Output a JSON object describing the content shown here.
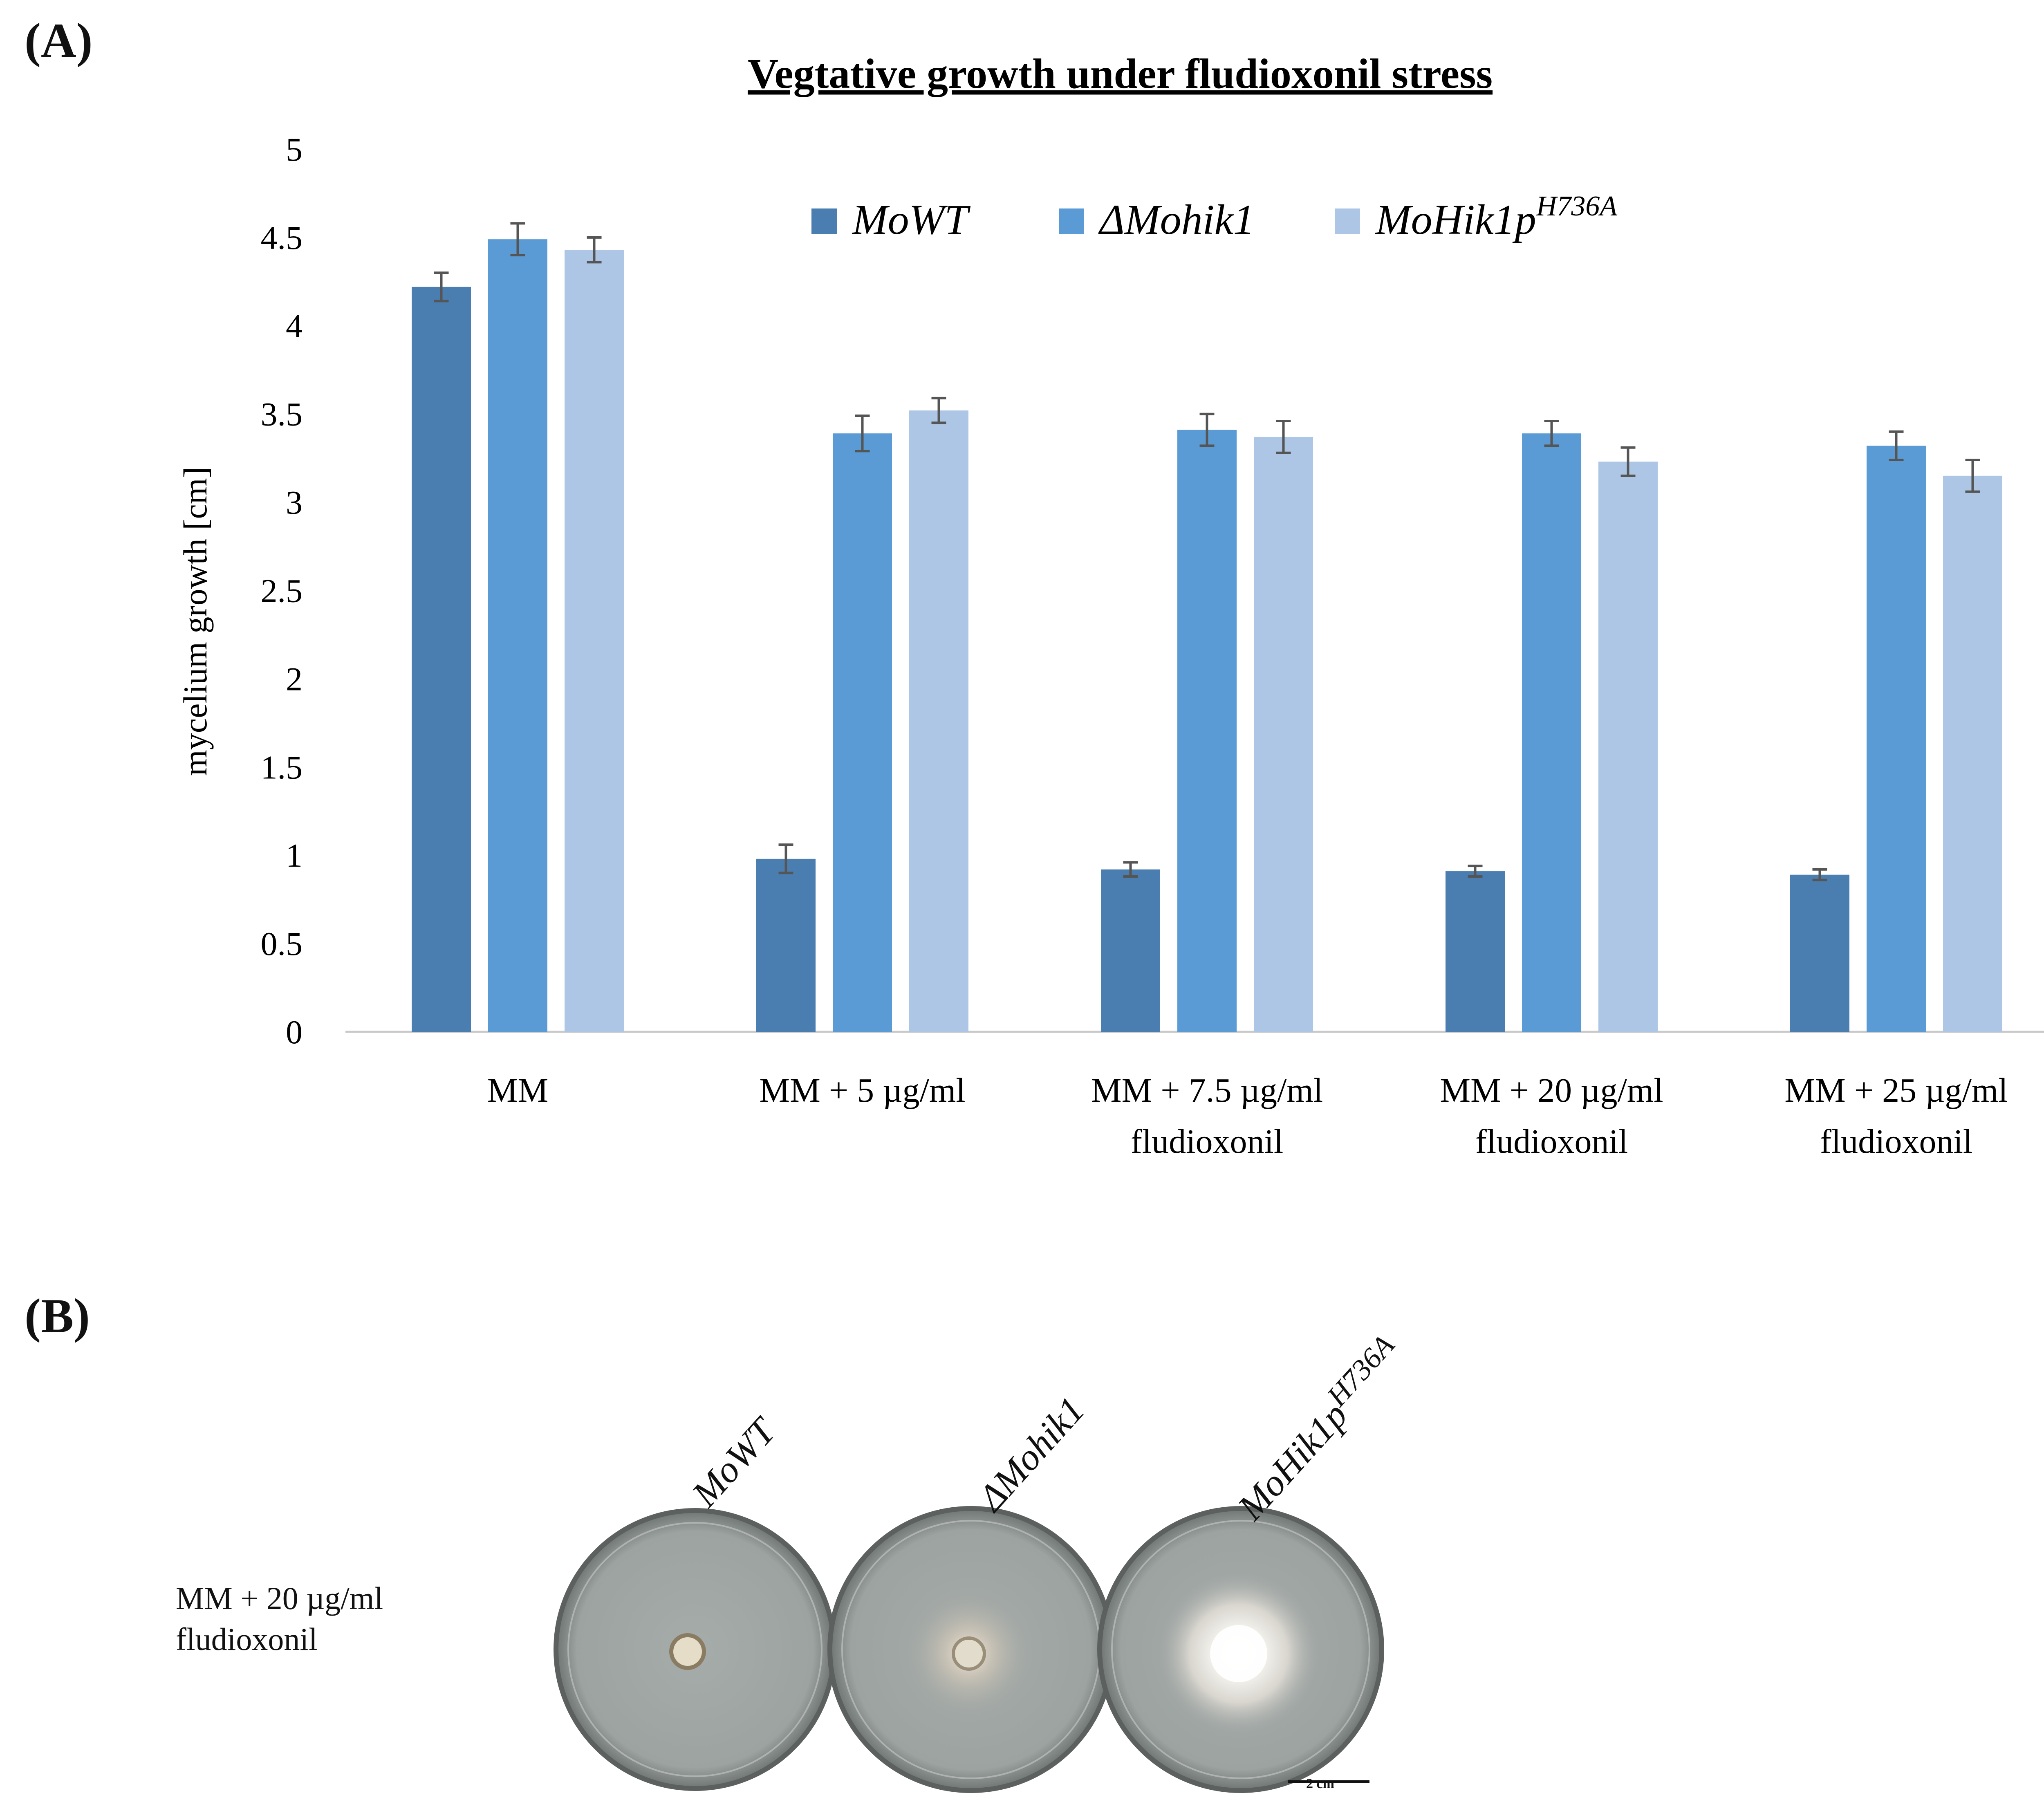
{
  "panel_a_label": "(A)",
  "panel_b_label": "(B)",
  "chart_data": {
    "type": "bar",
    "title": "Vegtative growth under fludioxonil stress",
    "xlabel": "",
    "ylabel": "mycelium growth [cm]",
    "ylim": [
      0,
      5
    ],
    "yticks": [
      "0",
      "0.5",
      "1",
      "1.5",
      "2",
      "2.5",
      "3",
      "3.5",
      "4",
      "4.5",
      "5"
    ],
    "ytick_values": [
      0,
      0.5,
      1,
      1.5,
      2,
      2.5,
      3,
      3.5,
      4,
      4.5,
      5
    ],
    "grid": false,
    "legend_position": "top-center",
    "categories": [
      [
        "MM"
      ],
      [
        "MM + 5 µg/ml"
      ],
      [
        "MM + 7.5 µg/ml",
        "fludioxonil"
      ],
      [
        "MM + 20 µg/ml",
        "fludioxonil"
      ],
      [
        "MM + 25 µg/ml",
        "fludioxonil"
      ]
    ],
    "series": [
      {
        "name": "MoWT",
        "superscript": "",
        "color": "#4a7eb1",
        "values": [
          4.22,
          0.98,
          0.92,
          0.91,
          0.89
        ],
        "errors": [
          0.08,
          0.08,
          0.04,
          0.03,
          0.03
        ]
      },
      {
        "name": "ΔMohik1",
        "superscript": "",
        "color": "#5b9bd5",
        "values": [
          4.49,
          3.39,
          3.41,
          3.39,
          3.32
        ],
        "errors": [
          0.09,
          0.1,
          0.09,
          0.07,
          0.08
        ]
      },
      {
        "name": "MoHik1p",
        "superscript": "H736A",
        "color": "#adc6e5",
        "values": [
          4.43,
          3.52,
          3.37,
          3.23,
          3.15
        ],
        "errors": [
          0.07,
          0.07,
          0.09,
          0.08,
          0.09
        ]
      }
    ]
  },
  "plates": {
    "condition_line1": "MM + 20 µg/ml",
    "condition_line2": "fludioxonil",
    "names": [
      "MoWT",
      "ΔMohik1",
      "MoHik1p"
    ],
    "superscript": "H736A",
    "scalebar_label": "2 cm"
  }
}
